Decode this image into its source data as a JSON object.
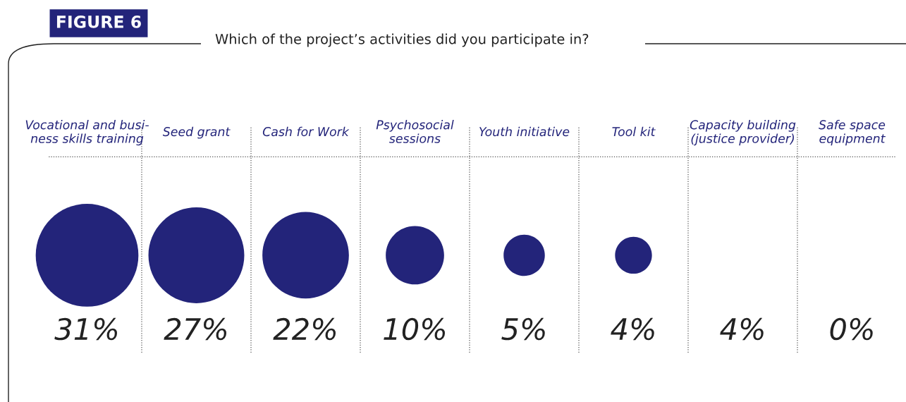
{
  "chart_data": {
    "type": "other",
    "title": "FIGURE 6",
    "subtitle": "Which of the project’s activities did you participate in?",
    "categories": [
      "Vocational and busi-\nness skills training",
      "Seed grant",
      "Cash for Work",
      "Psychosocial\nsessions",
      "Youth initiative",
      "Tool kit",
      "Capacity building\n(justice provider)",
      "Safe space\nequipment"
    ],
    "values": [
      31,
      27,
      22,
      10,
      5,
      4,
      4,
      0
    ],
    "value_labels": [
      "31%",
      "27%",
      "22%",
      "10%",
      "5%",
      "4%",
      "4%",
      "0%"
    ],
    "colors": [
      "#23247a",
      "#23247a",
      "#23247a",
      "#23247a",
      "#23247a",
      "#23247a",
      null,
      "#23247a"
    ]
  }
}
